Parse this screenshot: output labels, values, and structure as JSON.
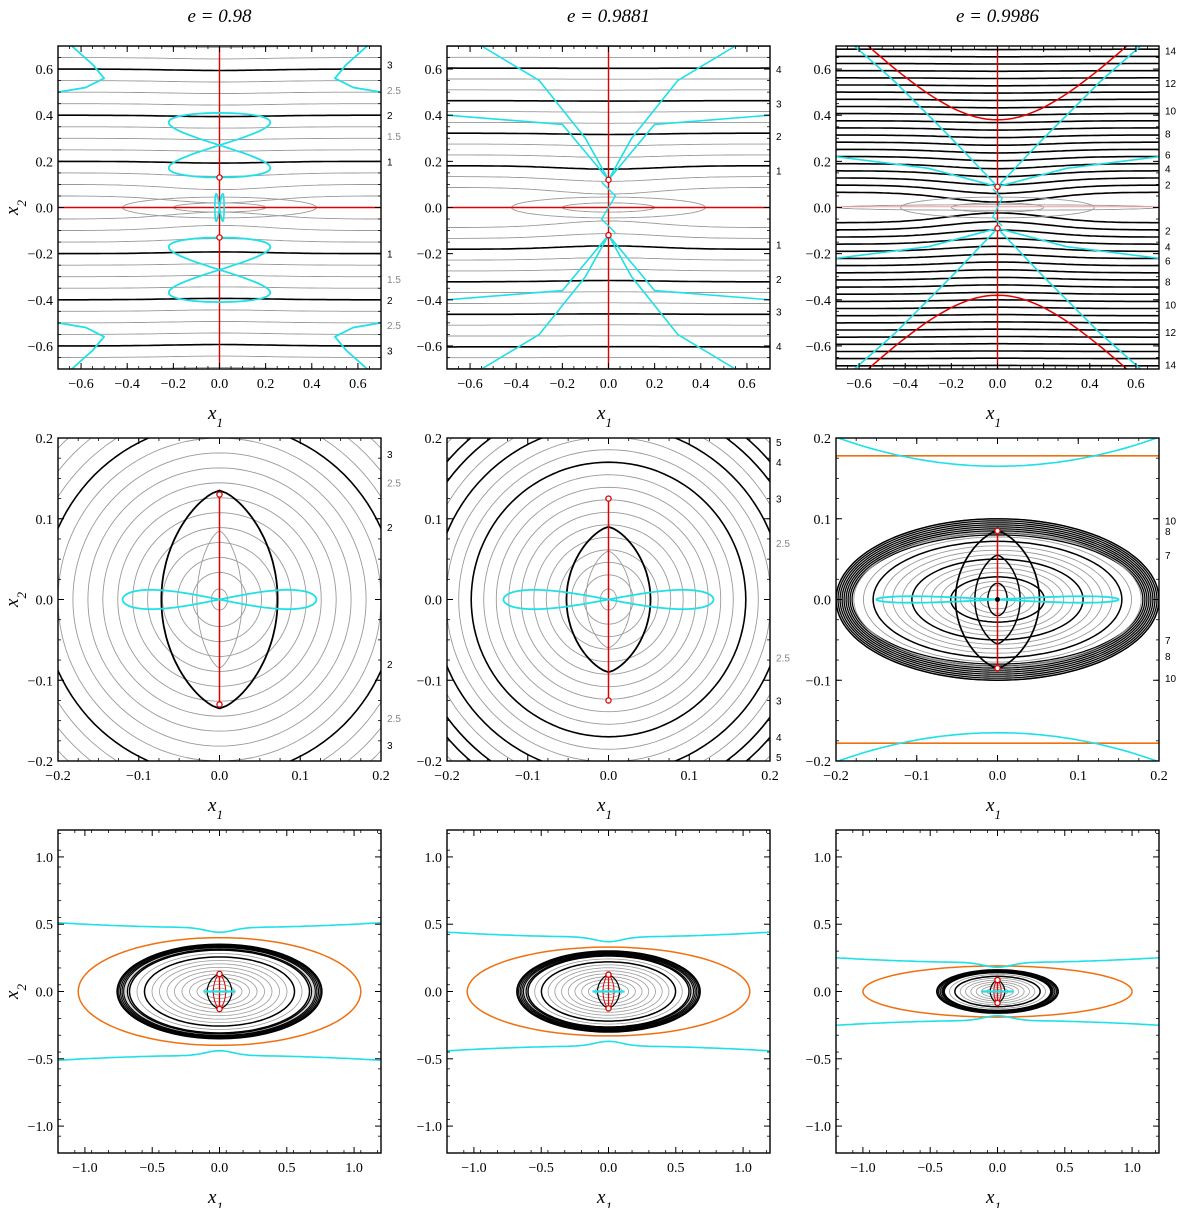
{
  "figure": {
    "column_titles": [
      "e = 0.98",
      "e = 0.9881",
      "e = 0.9986"
    ],
    "xlabel": "x",
    "xlabel_sub": "1",
    "ylabel": "x",
    "ylabel_sub": "2"
  },
  "chart_data": [
    {
      "row": 0,
      "col": 0,
      "type": "contour",
      "xlim": [
        -0.7,
        0.7
      ],
      "ylim": [
        -0.7,
        0.7
      ],
      "xticks": [
        -0.6,
        -0.4,
        -0.2,
        0.0,
        0.2,
        0.4,
        0.6
      ],
      "yticks": [
        -0.6,
        -0.4,
        -0.2,
        0.0,
        0.2,
        0.4,
        0.6
      ],
      "right_labels": [
        {
          "y": 0.62,
          "text": "3",
          "color": "#000000"
        },
        {
          "y": 0.51,
          "text": "2.5",
          "color": "#888888"
        },
        {
          "y": 0.4,
          "text": "2",
          "color": "#000000"
        },
        {
          "y": 0.31,
          "text": "1.5",
          "color": "#888888"
        },
        {
          "y": 0.2,
          "text": "1",
          "color": "#000000"
        },
        {
          "y": -0.2,
          "text": "1",
          "color": "#000000"
        },
        {
          "y": -0.31,
          "text": "1.5",
          "color": "#888888"
        },
        {
          "y": -0.4,
          "text": "2",
          "color": "#000000"
        },
        {
          "y": -0.51,
          "text": "2.5",
          "color": "#888888"
        },
        {
          "y": -0.62,
          "text": "3",
          "color": "#000000"
        }
      ],
      "cusp_points": [
        [
          0,
          0.13
        ],
        [
          0,
          -0.13
        ]
      ]
    },
    {
      "row": 0,
      "col": 1,
      "type": "contour",
      "xlim": [
        -0.7,
        0.7
      ],
      "ylim": [
        -0.7,
        0.7
      ],
      "xticks": [
        -0.6,
        -0.4,
        -0.2,
        0.0,
        0.2,
        0.4,
        0.6
      ],
      "yticks": [
        -0.6,
        -0.4,
        -0.2,
        0.0,
        0.2,
        0.4,
        0.6
      ],
      "right_labels": [
        {
          "y": 0.6,
          "text": "4",
          "color": "#000000"
        },
        {
          "y": 0.45,
          "text": "3",
          "color": "#000000"
        },
        {
          "y": 0.31,
          "text": "2",
          "color": "#000000"
        },
        {
          "y": 0.16,
          "text": "1",
          "color": "#000000"
        },
        {
          "y": -0.16,
          "text": "1",
          "color": "#000000"
        },
        {
          "y": -0.31,
          "text": "2",
          "color": "#000000"
        },
        {
          "y": -0.45,
          "text": "3",
          "color": "#000000"
        },
        {
          "y": -0.6,
          "text": "4",
          "color": "#000000"
        }
      ],
      "cusp_points": [
        [
          0,
          0.12
        ],
        [
          0,
          -0.12
        ]
      ]
    },
    {
      "row": 0,
      "col": 2,
      "type": "contour",
      "xlim": [
        -0.7,
        0.7
      ],
      "ylim": [
        -0.7,
        0.7
      ],
      "xticks": [
        -0.6,
        -0.4,
        -0.2,
        0.0,
        0.2,
        0.4,
        0.6
      ],
      "yticks": [
        -0.6,
        -0.4,
        -0.2,
        0.0,
        0.2,
        0.4,
        0.6
      ],
      "right_labels": [
        {
          "y": 0.68,
          "text": "14",
          "color": "#000000"
        },
        {
          "y": 0.54,
          "text": "12",
          "color": "#000000"
        },
        {
          "y": 0.42,
          "text": "10",
          "color": "#000000"
        },
        {
          "y": 0.32,
          "text": "8",
          "color": "#000000"
        },
        {
          "y": 0.23,
          "text": "6",
          "color": "#000000"
        },
        {
          "y": 0.17,
          "text": "4",
          "color": "#000000"
        },
        {
          "y": 0.1,
          "text": "2",
          "color": "#000000"
        },
        {
          "y": -0.1,
          "text": "2",
          "color": "#000000"
        },
        {
          "y": -0.17,
          "text": "4",
          "color": "#000000"
        },
        {
          "y": -0.23,
          "text": "6",
          "color": "#000000"
        },
        {
          "y": -0.32,
          "text": "8",
          "color": "#000000"
        },
        {
          "y": -0.42,
          "text": "10",
          "color": "#000000"
        },
        {
          "y": -0.54,
          "text": "12",
          "color": "#000000"
        },
        {
          "y": -0.68,
          "text": "14",
          "color": "#000000"
        }
      ],
      "cusp_points": [
        [
          0,
          0.09
        ],
        [
          0,
          -0.09
        ]
      ]
    },
    {
      "row": 1,
      "col": 0,
      "type": "contour",
      "xlim": [
        -0.2,
        0.2
      ],
      "ylim": [
        -0.2,
        0.2
      ],
      "xticks": [
        -0.2,
        -0.1,
        0.0,
        0.1,
        0.2
      ],
      "yticks": [
        -0.2,
        -0.1,
        0.0,
        0.1,
        0.2
      ],
      "right_labels": [
        {
          "y": 0.18,
          "text": "3",
          "color": "#000000"
        },
        {
          "y": 0.145,
          "text": "2.5",
          "color": "#888888"
        },
        {
          "y": 0.09,
          "text": "2",
          "color": "#000000"
        },
        {
          "y": -0.08,
          "text": "2",
          "color": "#000000"
        },
        {
          "y": -0.147,
          "text": "2.5",
          "color": "#888888"
        },
        {
          "y": -0.18,
          "text": "3",
          "color": "#000000"
        }
      ],
      "cusp_points": [
        [
          0,
          0.13
        ],
        [
          0,
          -0.13
        ]
      ]
    },
    {
      "row": 1,
      "col": 1,
      "type": "contour",
      "xlim": [
        -0.2,
        0.2
      ],
      "ylim": [
        -0.2,
        0.2
      ],
      "xticks": [
        -0.2,
        -0.1,
        0.0,
        0.1,
        0.2
      ],
      "yticks": [
        -0.2,
        -0.1,
        0.0,
        0.1,
        0.2
      ],
      "right_labels": [
        {
          "y": 0.195,
          "text": "5",
          "color": "#000000"
        },
        {
          "y": 0.17,
          "text": "4",
          "color": "#000000"
        },
        {
          "y": 0.125,
          "text": "3",
          "color": "#000000"
        },
        {
          "y": 0.07,
          "text": "2.5",
          "color": "#888888"
        },
        {
          "y": -0.072,
          "text": "2.5",
          "color": "#888888"
        },
        {
          "y": -0.125,
          "text": "3",
          "color": "#000000"
        },
        {
          "y": -0.17,
          "text": "4",
          "color": "#000000"
        },
        {
          "y": -0.195,
          "text": "5",
          "color": "#000000"
        }
      ],
      "cusp_points": [
        [
          0,
          0.125
        ],
        [
          0,
          -0.125
        ]
      ]
    },
    {
      "row": 1,
      "col": 2,
      "type": "contour",
      "xlim": [
        -0.2,
        0.2
      ],
      "ylim": [
        -0.2,
        0.2
      ],
      "xticks": [
        -0.2,
        -0.1,
        0.0,
        0.1,
        0.2
      ],
      "yticks": [
        -0.2,
        -0.1,
        0.0,
        0.1,
        0.2
      ],
      "right_labels": [
        {
          "y": 0.098,
          "text": "10",
          "color": "#000000"
        },
        {
          "y": 0.085,
          "text": "8",
          "color": "#000000"
        },
        {
          "y": 0.055,
          "text": "7",
          "color": "#000000"
        },
        {
          "y": -0.05,
          "text": "7",
          "color": "#000000"
        },
        {
          "y": -0.07,
          "text": "8",
          "color": "#000000"
        },
        {
          "y": -0.097,
          "text": "10",
          "color": "#000000"
        }
      ],
      "cusp_points": [
        [
          0,
          0.085
        ],
        [
          0,
          -0.085
        ]
      ]
    },
    {
      "row": 2,
      "col": 0,
      "type": "contour",
      "xlim": [
        -1.2,
        1.2
      ],
      "ylim": [
        -1.2,
        1.2
      ],
      "xticks": [
        -1.0,
        -0.5,
        0.0,
        0.5,
        1.0
      ],
      "yticks": [
        -1.0,
        -0.5,
        0.0,
        0.5,
        1.0
      ],
      "right_labels": [],
      "cusp_points": [
        [
          0,
          0.13
        ],
        [
          0,
          -0.13
        ]
      ]
    },
    {
      "row": 2,
      "col": 1,
      "type": "contour",
      "xlim": [
        -1.2,
        1.2
      ],
      "ylim": [
        -1.2,
        1.2
      ],
      "xticks": [
        -1.0,
        -0.5,
        0.0,
        0.5,
        1.0
      ],
      "yticks": [
        -1.0,
        -0.5,
        0.0,
        0.5,
        1.0
      ],
      "right_labels": [],
      "cusp_points": [
        [
          0,
          0.125
        ],
        [
          0,
          -0.125
        ]
      ]
    },
    {
      "row": 2,
      "col": 2,
      "type": "contour",
      "xlim": [
        -1.2,
        1.2
      ],
      "ylim": [
        -1.2,
        1.2
      ],
      "xticks": [
        -1.0,
        -0.5,
        0.0,
        0.5,
        1.0
      ],
      "yticks": [
        -1.0,
        -0.5,
        0.0,
        0.5,
        1.0
      ],
      "right_labels": [],
      "cusp_points": [
        [
          0,
          0.085
        ],
        [
          0,
          -0.085
        ]
      ]
    }
  ],
  "colors": {
    "black_contour": "#000000",
    "gray_contour": "#9a9a9a",
    "red": "#e00000",
    "cyan": "#1ee0e6",
    "orange": "#f07010",
    "fill_gray": "#d6d6d6"
  }
}
